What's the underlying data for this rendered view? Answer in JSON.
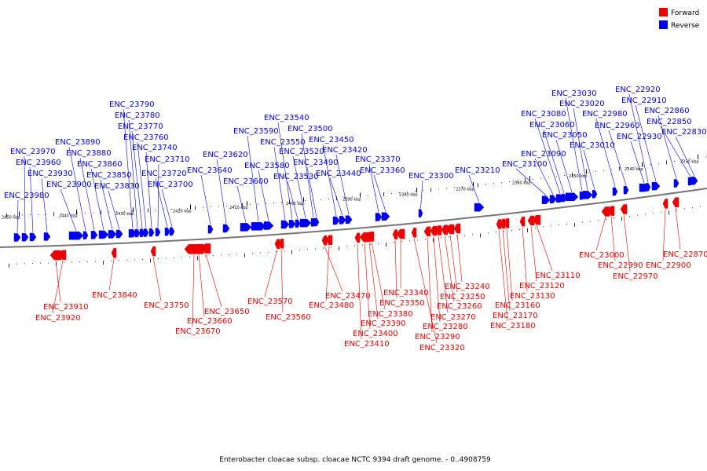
{
  "caption": "Enterobacter cloacae subsp. cloacae NCTC 9394 draft genome. - 0..4908759",
  "legend": [
    {
      "label": "Forward",
      "color": "#ee0000"
    },
    {
      "label": "Reverse",
      "color": "#0000ee"
    }
  ],
  "colors": {
    "forward": "#ee0000",
    "reverse": "#0000ee",
    "backbone": "#777777"
  },
  "kbp_labels": [
    "2450 kbp",
    "2440 kbp",
    "2430 kbp",
    "2420 kbp",
    "2410 kbp",
    "2400 kbp",
    "2390 kbp",
    "2380 kbp",
    "2370 kbp",
    "2360 kbp",
    "2350 kbp",
    "2340 kbp",
    "2330 kbp"
  ],
  "reverse_genes": [
    "ENC_23980",
    "ENC_23970",
    "ENC_23960",
    "ENC_23930",
    "ENC_23900",
    "ENC_23890",
    "ENC_23880",
    "ENC_23860",
    "ENC_23850",
    "ENC_23830",
    "ENC_23790",
    "ENC_23780",
    "ENC_23770",
    "ENC_23760",
    "ENC_23740",
    "ENC_23710",
    "ENC_23720",
    "ENC_23700",
    "ENC_23640",
    "ENC_23620",
    "ENC_23600",
    "ENC_23590",
    "ENC_23580",
    "ENC_23550",
    "ENC_23540",
    "ENC_23530",
    "ENC_23520",
    "ENC_23500",
    "ENC_23490",
    "ENC_23450",
    "ENC_23440",
    "ENC_23420",
    "ENC_23370",
    "ENC_23360",
    "ENC_23300",
    "ENC_23210",
    "ENC_23100",
    "ENC_23090",
    "ENC_23080",
    "ENC_23060",
    "ENC_23050",
    "ENC_23030",
    "ENC_23020",
    "ENC_23010",
    "ENC_22980",
    "ENC_22960",
    "ENC_22930",
    "ENC_22920",
    "ENC_22910",
    "ENC_22860",
    "ENC_22850",
    "ENC_22830"
  ],
  "forward_genes": [
    "ENC_23910",
    "ENC_23920",
    "ENC_23840",
    "ENC_23750",
    "ENC_23670",
    "ENC_23660",
    "ENC_23650",
    "ENC_23570",
    "ENC_23560",
    "ENC_23470",
    "ENC_23480",
    "ENC_23410",
    "ENC_23400",
    "ENC_23390",
    "ENC_23380",
    "ENC_23350",
    "ENC_23340",
    "ENC_23320",
    "ENC_23290",
    "ENC_23280",
    "ENC_23270",
    "ENC_23260",
    "ENC_23250",
    "ENC_23240",
    "ENC_23180",
    "ENC_23170",
    "ENC_23160",
    "ENC_23130",
    "ENC_23120",
    "ENC_23110",
    "ENC_23000",
    "ENC_22990",
    "ENC_22970",
    "ENC_22900",
    "ENC_22870"
  ]
}
